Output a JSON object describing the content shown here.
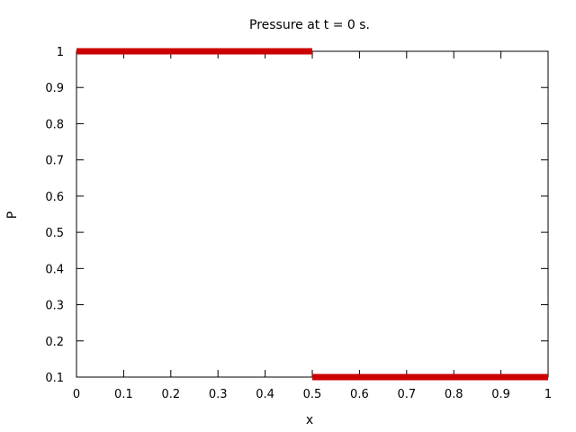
{
  "chart_data": {
    "type": "line",
    "title": "Pressure at t = 0 s.",
    "xlabel": "x",
    "ylabel": "P",
    "xlim": [
      0,
      1
    ],
    "ylim": [
      0.1,
      1
    ],
    "x_ticks": [
      "0",
      "0.1",
      "0.2",
      "0.3",
      "0.4",
      "0.5",
      "0.6",
      "0.7",
      "0.8",
      "0.9",
      "1"
    ],
    "y_ticks": [
      "0.1",
      "0.2",
      "0.3",
      "0.4",
      "0.5",
      "0.6",
      "0.7",
      "0.8",
      "0.9",
      "1"
    ],
    "grid": false,
    "legend": "none",
    "series": [
      {
        "color": "#cc0000",
        "x": [
          0,
          0.5,
          0.5,
          1
        ],
        "y": [
          1,
          1,
          0.1,
          0.1
        ]
      }
    ]
  }
}
